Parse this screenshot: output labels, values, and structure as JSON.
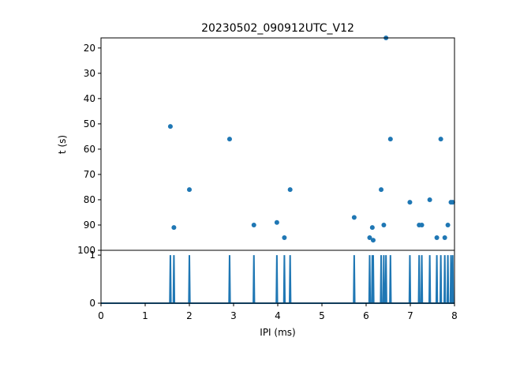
{
  "chart_data": [
    {
      "type": "scatter",
      "title": "20230502_090912UTC_V12",
      "xlabel": "",
      "ylabel": "t (s)",
      "xlim": [
        0,
        8
      ],
      "ylim": [
        100,
        16
      ],
      "y_inverted": true,
      "yticks": [
        "20",
        "30",
        "40",
        "50",
        "60",
        "70",
        "80",
        "90",
        "100"
      ],
      "grid": false,
      "color": "#1f77b4",
      "points": [
        {
          "x": 1.57,
          "y": 51
        },
        {
          "x": 1.65,
          "y": 91
        },
        {
          "x": 2.0,
          "y": 76
        },
        {
          "x": 2.91,
          "y": 56
        },
        {
          "x": 3.46,
          "y": 90
        },
        {
          "x": 3.98,
          "y": 89
        },
        {
          "x": 4.15,
          "y": 95
        },
        {
          "x": 4.28,
          "y": 76
        },
        {
          "x": 5.73,
          "y": 87
        },
        {
          "x": 6.08,
          "y": 95
        },
        {
          "x": 6.14,
          "y": 91
        },
        {
          "x": 6.16,
          "y": 96
        },
        {
          "x": 6.34,
          "y": 76
        },
        {
          "x": 6.4,
          "y": 90
        },
        {
          "x": 6.45,
          "y": 16
        },
        {
          "x": 6.55,
          "y": 56
        },
        {
          "x": 6.99,
          "y": 81
        },
        {
          "x": 7.2,
          "y": 90
        },
        {
          "x": 7.26,
          "y": 90
        },
        {
          "x": 7.44,
          "y": 80
        },
        {
          "x": 7.6,
          "y": 95
        },
        {
          "x": 7.69,
          "y": 56
        },
        {
          "x": 7.78,
          "y": 95
        },
        {
          "x": 7.85,
          "y": 90
        },
        {
          "x": 7.92,
          "y": 81
        },
        {
          "x": 7.96,
          "y": 81
        }
      ]
    },
    {
      "type": "line",
      "xlabel": "IPI (ms)",
      "ylabel": "",
      "xlim": [
        0,
        8
      ],
      "ylim": [
        0,
        1.1
      ],
      "xticks": [
        "0",
        "1",
        "2",
        "3",
        "4",
        "5",
        "6",
        "7",
        "8"
      ],
      "yticks": [
        "0",
        "1"
      ],
      "grid": false,
      "color": "#1f77b4",
      "spikes_at": [
        1.57,
        1.65,
        2.0,
        2.91,
        3.46,
        3.98,
        4.15,
        4.28,
        5.73,
        6.08,
        6.14,
        6.16,
        6.34,
        6.4,
        6.45,
        6.55,
        6.99,
        7.2,
        7.26,
        7.44,
        7.6,
        7.69,
        7.78,
        7.85,
        7.92,
        7.96
      ],
      "spike_value": 1
    }
  ]
}
